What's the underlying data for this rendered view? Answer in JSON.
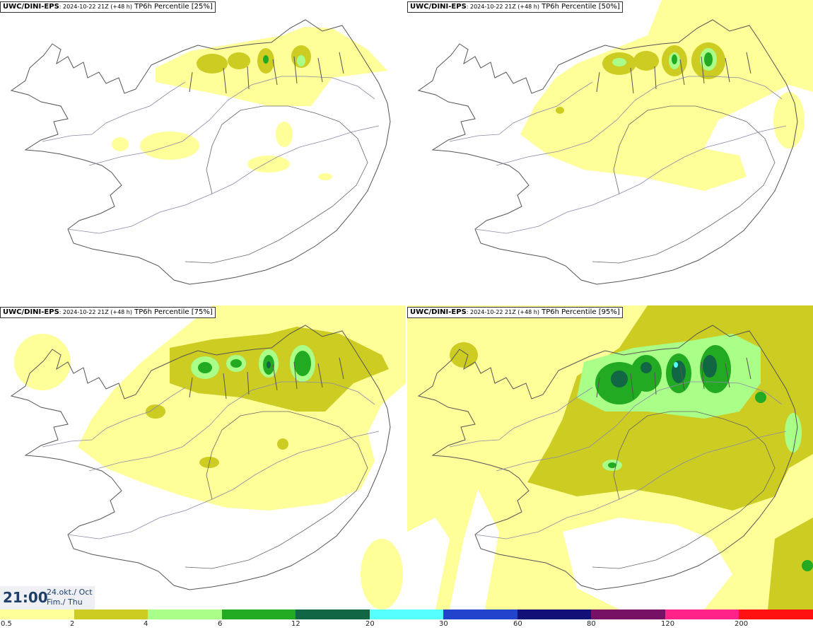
{
  "colors": {
    "land_line": "#555555",
    "road_line": "#8a8aa8",
    "precip_levels": [
      "#ffff99",
      "#cccc22",
      "#aaff88",
      "#22aa22",
      "#116644",
      "#55ffff",
      "#2244cc",
      "#111177",
      "#771166",
      "#ff2288",
      "#ff1111"
    ]
  },
  "panels": [
    {
      "model": "UWC/DINI-EPS",
      "run": ": 2024-10-22 21Z (+48 h)",
      "field": " TP6h Percentile [25%]"
    },
    {
      "model": "UWC/DINI-EPS",
      "run": ": 2024-10-22 21Z (+48 h)",
      "field": " TP6h Percentile [50%]"
    },
    {
      "model": "UWC/DINI-EPS",
      "run": ": 2024-10-22 21Z (+48 h)",
      "field": " TP6h Percentile [75%]"
    },
    {
      "model": "UWC/DINI-EPS",
      "run": ": 2024-10-22 21Z (+48 h)",
      "field": " TP6h Percentile [95%]"
    }
  ],
  "valid_time": {
    "time": "21:00",
    "date": "24.okt./ Oct",
    "day": "Fim./ Thu"
  },
  "legend": {
    "labels": [
      "0.5",
      "2",
      "4",
      "6",
      "12",
      "20",
      "30",
      "60",
      "80",
      "120",
      "200"
    ]
  }
}
